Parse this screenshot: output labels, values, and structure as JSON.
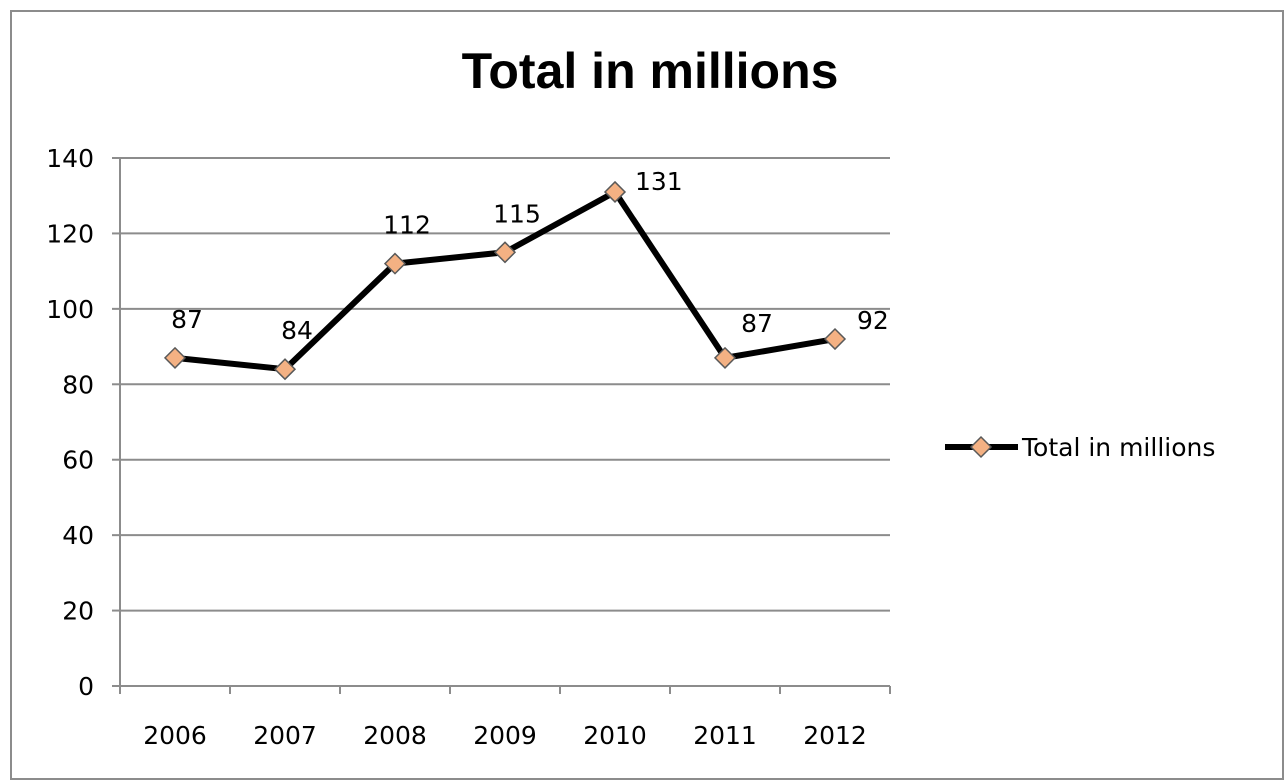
{
  "chart_data": {
    "type": "line",
    "title": "Total in millions",
    "categories": [
      "2006",
      "2007",
      "2008",
      "2009",
      "2010",
      "2011",
      "2012"
    ],
    "series": [
      {
        "name": "Total in millions",
        "values": [
          87,
          84,
          112,
          115,
          131,
          87,
          92
        ],
        "line_color": "#000000",
        "marker": "diamond",
        "marker_color": "#f4b183",
        "data_labels": [
          "87",
          "84",
          "112",
          "115",
          "131",
          "87",
          "92"
        ]
      }
    ],
    "ylim": [
      0,
      140
    ],
    "y_ticks": [
      "0",
      "20",
      "40",
      "60",
      "80",
      "100",
      "120",
      "140"
    ],
    "grid": true,
    "legend_position": "right",
    "xlabel": "",
    "ylabel": ""
  }
}
